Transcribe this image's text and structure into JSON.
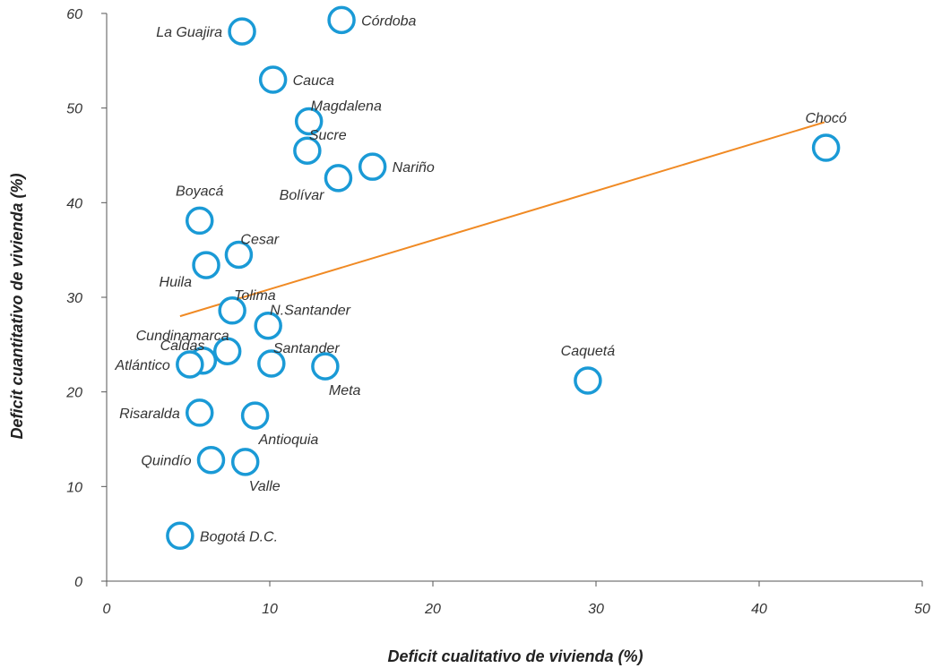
{
  "chart_data": {
    "type": "scatter",
    "xlabel": "Deficit cualitativo de vivienda (%)",
    "ylabel": "Deficit cuantitativo de vivienda (%)",
    "xlim": [
      0,
      50
    ],
    "ylim": [
      0,
      60
    ],
    "x_ticks": [
      "0",
      "10",
      "20",
      "30",
      "40",
      "50"
    ],
    "y_ticks": [
      "0",
      "10",
      "20",
      "30",
      "40",
      "50",
      "60"
    ],
    "grid": false,
    "point_color": "#1a9ad6",
    "trend_color": "#f08a24",
    "trendline": {
      "x": [
        4.5,
        44.0
      ],
      "y": [
        28.0,
        48.5
      ]
    },
    "points": [
      {
        "label": "Córdoba",
        "x": 14.4,
        "y": 59.3,
        "pos": "right"
      },
      {
        "label": "La Guajira",
        "x": 8.3,
        "y": 58.1,
        "pos": "left"
      },
      {
        "label": "Cauca",
        "x": 10.2,
        "y": 53.0,
        "pos": "right"
      },
      {
        "label": "Magdalena",
        "x": 12.4,
        "y": 48.6,
        "pos": "upright"
      },
      {
        "label": "Sucre",
        "x": 12.3,
        "y": 45.5,
        "pos": "upright"
      },
      {
        "label": "Nariño",
        "x": 16.3,
        "y": 43.8,
        "pos": "right"
      },
      {
        "label": "Bolívar",
        "x": 14.2,
        "y": 42.6,
        "pos": "downleft"
      },
      {
        "label": "Chocó",
        "x": 44.1,
        "y": 45.8,
        "pos": "above"
      },
      {
        "label": "Boyacá",
        "x": 5.7,
        "y": 38.1,
        "pos": "above"
      },
      {
        "label": "Cesar",
        "x": 8.1,
        "y": 34.5,
        "pos": "upright"
      },
      {
        "label": "Huila",
        "x": 6.1,
        "y": 33.4,
        "pos": "downleft"
      },
      {
        "label": "Tolima",
        "x": 7.7,
        "y": 28.6,
        "pos": "upright"
      },
      {
        "label": "N.Santander",
        "x": 9.9,
        "y": 27.0,
        "pos": "upright"
      },
      {
        "label": "Cundinamarca",
        "x": 7.4,
        "y": 24.3,
        "pos": "upleft"
      },
      {
        "label": "Caldas",
        "x": 5.9,
        "y": 23.3,
        "pos": "upleft"
      },
      {
        "label": "Atlántico",
        "x": 5.1,
        "y": 22.9,
        "pos": "left"
      },
      {
        "label": "Santander",
        "x": 10.1,
        "y": 23.0,
        "pos": "upright"
      },
      {
        "label": "Meta",
        "x": 13.4,
        "y": 22.7,
        "pos": "downright"
      },
      {
        "label": "Caquetá",
        "x": 29.5,
        "y": 21.2,
        "pos": "above"
      },
      {
        "label": "Risaralda",
        "x": 5.7,
        "y": 17.8,
        "pos": "left"
      },
      {
        "label": "Antioquia",
        "x": 9.1,
        "y": 17.5,
        "pos": "downright"
      },
      {
        "label": "Quindío",
        "x": 6.4,
        "y": 12.8,
        "pos": "left"
      },
      {
        "label": "Valle",
        "x": 8.5,
        "y": 12.6,
        "pos": "downright"
      },
      {
        "label": "Bogotá D.C.",
        "x": 4.5,
        "y": 4.8,
        "pos": "right"
      }
    ]
  }
}
